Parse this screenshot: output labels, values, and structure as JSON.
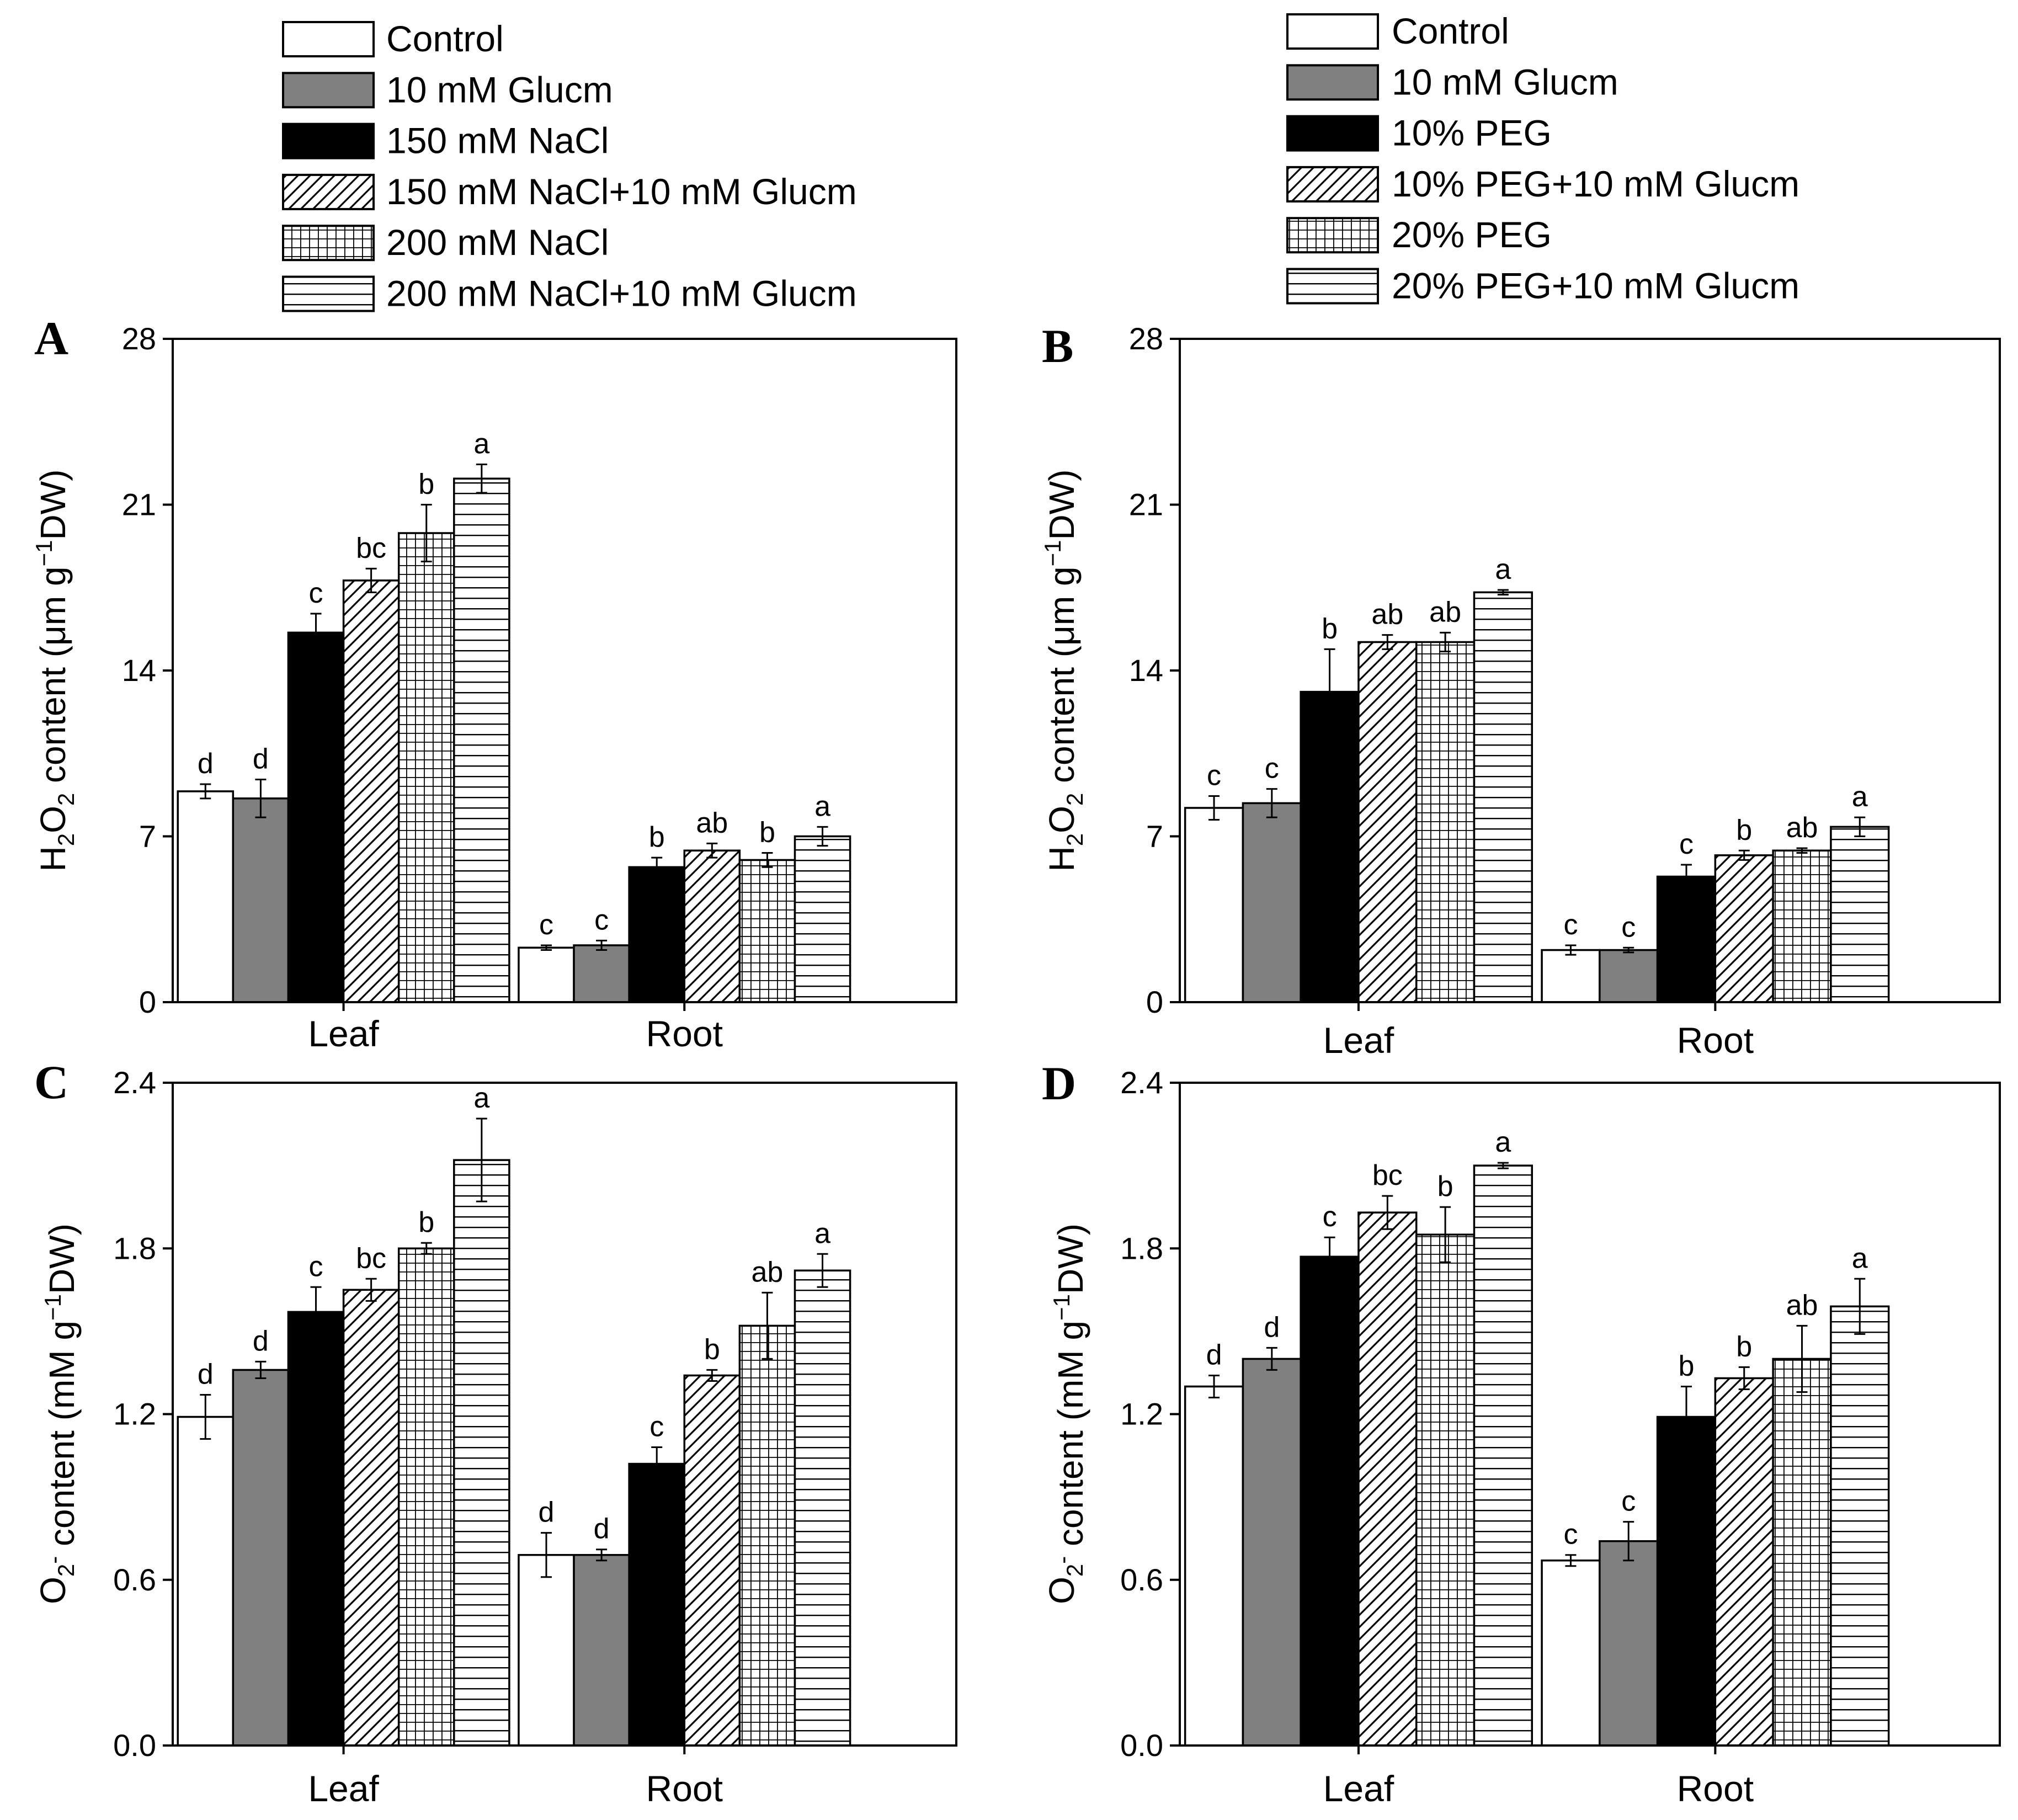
{
  "legends": [
    {
      "items": [
        "Control",
        "10 mM Glucm",
        "150 mM NaCl",
        "150 mM NaCl+10 mM Glucm",
        "200 mM NaCl",
        "200 mM NaCl+10 mM Glucm"
      ],
      "patterns": [
        "white",
        "gray",
        "black",
        "diagonal",
        "grid",
        "horizontal"
      ]
    },
    {
      "items": [
        "Control",
        "10 mM Glucm",
        "10% PEG",
        "10% PEG+10 mM Glucm",
        "20% PEG",
        "20% PEG+10 mM Glucm"
      ],
      "patterns": [
        "white",
        "gray",
        "black",
        "diagonal",
        "grid",
        "horizontal"
      ]
    }
  ],
  "colors": {
    "gray_fill": "#808080",
    "black_fill": "#000000",
    "stroke": "#000000"
  },
  "chart_data": [
    {
      "type": "bar",
      "panel": "A",
      "ylabel": "H2O2 content (μm g-1DW)",
      "ylabel_parts": {
        "a": "H",
        "b": "2",
        "c": "O",
        "d": "2",
        "e": " content (",
        "f": "μ",
        "g": "m g",
        "h": "−1",
        "i": "DW)"
      },
      "ylim": [
        0,
        28
      ],
      "yticks": [
        "0",
        "7",
        "14",
        "21",
        "28"
      ],
      "tick_values": [
        0,
        7,
        14,
        21,
        28
      ],
      "categories": [
        "Leaf",
        "Root"
      ],
      "series": [
        {
          "name": "Control",
          "values": [
            8.9,
            2.3
          ],
          "errors": [
            0.3,
            0.1
          ],
          "labels": [
            "d",
            "c"
          ]
        },
        {
          "name": "10 mM Glucm",
          "values": [
            8.6,
            2.4
          ],
          "errors": [
            0.8,
            0.2
          ],
          "labels": [
            "d",
            "c"
          ]
        },
        {
          "name": "150 mM NaCl",
          "values": [
            15.6,
            5.7
          ],
          "errors": [
            0.8,
            0.4
          ],
          "labels": [
            "c",
            "b"
          ]
        },
        {
          "name": "150 mM NaCl+10 mM Glucm",
          "values": [
            17.8,
            6.4
          ],
          "errors": [
            0.5,
            0.3
          ],
          "labels": [
            "bc",
            "ab"
          ]
        },
        {
          "name": "200 mM NaCl",
          "values": [
            19.8,
            6.0
          ],
          "errors": [
            1.2,
            0.3
          ],
          "labels": [
            "b",
            "b"
          ]
        },
        {
          "name": "200 mM NaCl+10 mM Glucm",
          "values": [
            22.1,
            7.0
          ],
          "errors": [
            0.6,
            0.4
          ],
          "labels": [
            "a",
            "a"
          ]
        }
      ]
    },
    {
      "type": "bar",
      "panel": "B",
      "ylabel": "H2O2 content (μm g-1DW)",
      "ylabel_parts": {
        "a": "H",
        "b": "2",
        "c": "O",
        "d": "2",
        "e": " content (",
        "f": "μ",
        "g": "m g",
        "h": "−1",
        "i": "DW)"
      },
      "ylim": [
        0,
        28
      ],
      "yticks": [
        "0",
        "7",
        "14",
        "21",
        "28"
      ],
      "tick_values": [
        0,
        7,
        14,
        21,
        28
      ],
      "categories": [
        "Leaf",
        "Root"
      ],
      "series": [
        {
          "name": "Control",
          "values": [
            8.2,
            2.2
          ],
          "errors": [
            0.5,
            0.2
          ],
          "labels": [
            "c",
            "c"
          ]
        },
        {
          "name": "10 mM Glucm",
          "values": [
            8.4,
            2.2
          ],
          "errors": [
            0.6,
            0.1
          ],
          "labels": [
            "c",
            "c"
          ]
        },
        {
          "name": "10% PEG",
          "values": [
            13.1,
            5.3
          ],
          "errors": [
            1.8,
            0.5
          ],
          "labels": [
            "b",
            "c"
          ]
        },
        {
          "name": "10% PEG+10 mM Glucm",
          "values": [
            15.2,
            6.2
          ],
          "errors": [
            0.3,
            0.2
          ],
          "labels": [
            "ab",
            "b"
          ]
        },
        {
          "name": "20% PEG",
          "values": [
            15.2,
            6.4
          ],
          "errors": [
            0.4,
            0.1
          ],
          "labels": [
            "ab",
            "ab"
          ]
        },
        {
          "name": "20% PEG+10 mM Glucm",
          "values": [
            17.3,
            7.4
          ],
          "errors": [
            0.1,
            0.4
          ],
          "labels": [
            "a",
            "a"
          ]
        }
      ]
    },
    {
      "type": "bar",
      "panel": "C",
      "ylabel": "O2- content (mM g-1DW)",
      "ylabel_parts": {
        "a": "O",
        "b": "2",
        "c": "",
        "d": "-",
        "e": " content (",
        "f": "",
        "g": "mM g",
        "h": "−1",
        "i": "DW)"
      },
      "ylim": [
        0,
        2.4
      ],
      "yticks": [
        "0.0",
        "0.6",
        "1.2",
        "1.8",
        "2.4"
      ],
      "tick_values": [
        0,
        0.6,
        1.2,
        1.8,
        2.4
      ],
      "categories": [
        "Leaf",
        "Root"
      ],
      "series": [
        {
          "name": "Control",
          "values": [
            1.19,
            0.69
          ],
          "errors": [
            0.08,
            0.08
          ],
          "labels": [
            "d",
            "d"
          ]
        },
        {
          "name": "10 mM Glucm",
          "values": [
            1.36,
            0.69
          ],
          "errors": [
            0.03,
            0.02
          ],
          "labels": [
            "d",
            "d"
          ]
        },
        {
          "name": "150 mM NaCl",
          "values": [
            1.57,
            1.02
          ],
          "errors": [
            0.09,
            0.06
          ],
          "labels": [
            "c",
            "c"
          ]
        },
        {
          "name": "150 mM NaCl+10 mM Glucm",
          "values": [
            1.65,
            1.34
          ],
          "errors": [
            0.04,
            0.02
          ],
          "labels": [
            "bc",
            "b"
          ]
        },
        {
          "name": "200 mM NaCl",
          "values": [
            1.8,
            1.52
          ],
          "errors": [
            0.02,
            0.12
          ],
          "labels": [
            "b",
            "ab"
          ]
        },
        {
          "name": "200 mM NaCl+10 mM Glucm",
          "values": [
            2.12,
            1.72
          ],
          "errors": [
            0.15,
            0.06
          ],
          "labels": [
            "a",
            "a"
          ]
        }
      ]
    },
    {
      "type": "bar",
      "panel": "D",
      "ylabel": "O2- content (mM g-1DW)",
      "ylabel_parts": {
        "a": "O",
        "b": "2",
        "c": "",
        "d": "-",
        "e": " content (",
        "f": "",
        "g": "mM g",
        "h": "−1",
        "i": "DW)"
      },
      "ylim": [
        0,
        2.4
      ],
      "yticks": [
        "0.0",
        "0.6",
        "1.2",
        "1.8",
        "2.4"
      ],
      "tick_values": [
        0,
        0.6,
        1.2,
        1.8,
        2.4
      ],
      "categories": [
        "Leaf",
        "Root"
      ],
      "series": [
        {
          "name": "Control",
          "values": [
            1.3,
            0.67
          ],
          "errors": [
            0.04,
            0.02
          ],
          "labels": [
            "d",
            "c"
          ]
        },
        {
          "name": "10 mM Glucm",
          "values": [
            1.4,
            0.74
          ],
          "errors": [
            0.04,
            0.07
          ],
          "labels": [
            "d",
            "c"
          ]
        },
        {
          "name": "10% PEG",
          "values": [
            1.77,
            1.19
          ],
          "errors": [
            0.07,
            0.11
          ],
          "labels": [
            "c",
            "b"
          ]
        },
        {
          "name": "10% PEG+10 mM Glucm",
          "values": [
            1.93,
            1.33
          ],
          "errors": [
            0.06,
            0.04
          ],
          "labels": [
            "bc",
            "b"
          ]
        },
        {
          "name": "20% PEG",
          "values": [
            1.85,
            1.4
          ],
          "errors": [
            0.1,
            0.12
          ],
          "labels": [
            "b",
            "ab"
          ]
        },
        {
          "name": "20% PEG+10 mM Glucm",
          "values": [
            2.1,
            1.59
          ],
          "errors": [
            0.01,
            0.1
          ],
          "labels": [
            "a",
            "a"
          ]
        }
      ]
    }
  ]
}
